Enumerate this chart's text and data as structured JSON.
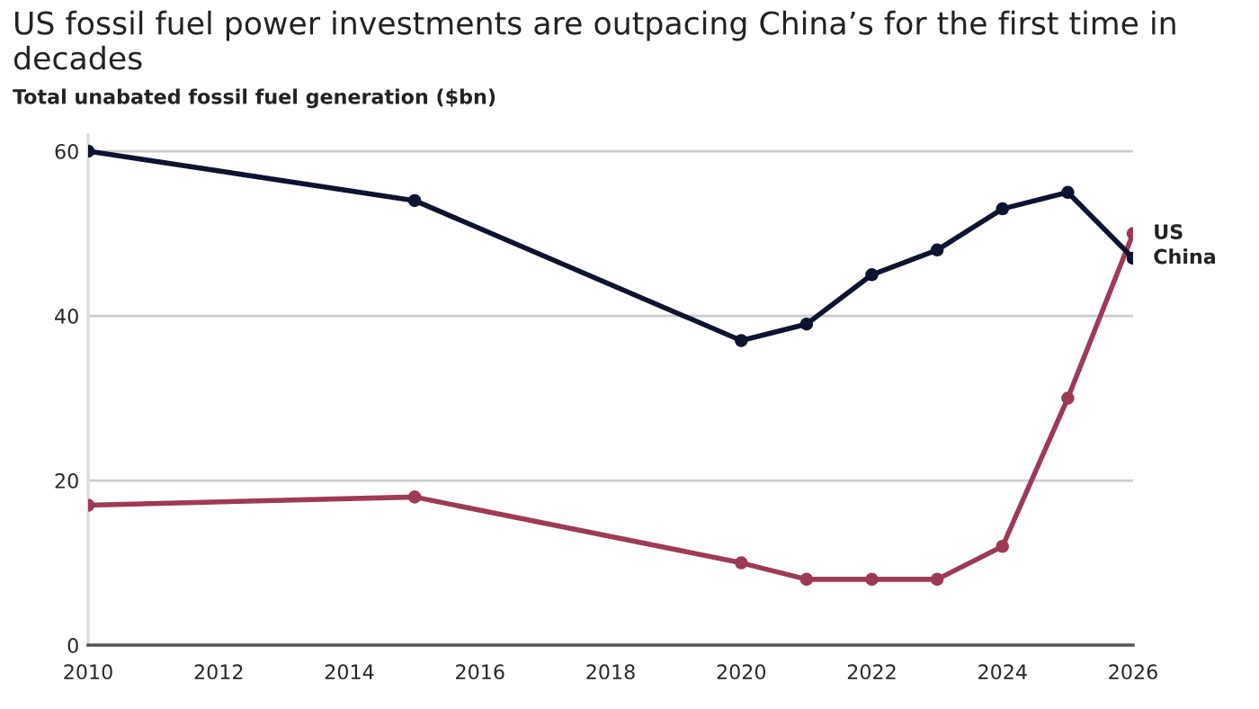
{
  "chart_data": {
    "type": "line",
    "title": "US fossil fuel power investments are outpacing China’s for the first time in decades",
    "subtitle": "Total unabated fossil fuel generation ($bn)",
    "x": [
      2010,
      2015,
      2020,
      2021,
      2022,
      2023,
      2024,
      2025,
      2026
    ],
    "series": [
      {
        "name": "US",
        "color": "#9e3a55",
        "values": [
          17,
          18,
          10,
          8,
          8,
          8,
          12,
          30,
          50
        ]
      },
      {
        "name": "China",
        "color": "#0d1330",
        "values": [
          60,
          54,
          37,
          39,
          45,
          48,
          53,
          55,
          47
        ]
      }
    ],
    "xlim": [
      2010,
      2026
    ],
    "xticks": [
      2010,
      2012,
      2014,
      2016,
      2018,
      2020,
      2022,
      2024,
      2026
    ],
    "ylim": [
      0,
      62
    ],
    "yticks": [
      0,
      20,
      40,
      60
    ],
    "grid": "y",
    "marker": "circle",
    "line_style": "solid",
    "legend": false
  }
}
